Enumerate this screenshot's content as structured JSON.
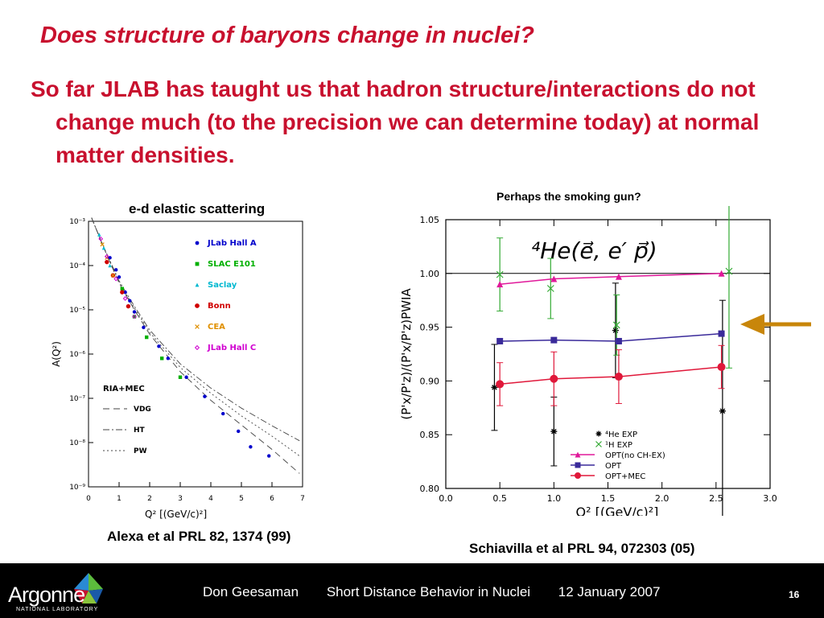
{
  "slide": {
    "title": "Does structure of baryons change in nuclei?",
    "bullet": "So far JLAB has taught us that hadron structure/interactions do not change much (to the precision we can determine today) at normal matter densities.",
    "left_caption": "e-d elastic scattering",
    "left_ref": "Alexa et al PRL 82, 1374 (99)",
    "right_caption": "Perhaps the smoking gun?",
    "right_ref": "Schiavilla et al PRL 94, 072303 (05)",
    "arrow_color": "#c8860a"
  },
  "footer": {
    "presenter": "Don Geesaman",
    "talk": "Short Distance Behavior in Nuclei",
    "date": "12 January 2007",
    "page": "16",
    "logo_text": "Argonne",
    "logo_sub": "NATIONAL LABORATORY"
  },
  "chart_data": [
    {
      "type": "scatter",
      "title": "",
      "xlabel": "Q² [(GeV/c)²]",
      "ylabel": "A(Q²)",
      "y_scale": "log",
      "xlim": [
        0,
        7
      ],
      "ylim": [
        1e-09,
        0.001
      ],
      "x_ticks": [
        "0",
        "1",
        "2",
        "3",
        "4",
        "5",
        "6",
        "7"
      ],
      "y_ticks": [
        "10⁻³",
        "10⁻⁴",
        "10⁻⁵",
        "10⁻⁶",
        "10⁻⁷",
        "10⁻⁸",
        "10⁻⁹"
      ],
      "legend": [
        {
          "label": "JLab Hall A",
          "color": "#0000cc",
          "marker": "dot"
        },
        {
          "label": "SLAC E101",
          "color": "#00b000",
          "marker": "square"
        },
        {
          "label": "Saclay",
          "color": "#00b8d0",
          "marker": "triangle"
        },
        {
          "label": "Bonn",
          "color": "#d00000",
          "marker": "circle"
        },
        {
          "label": "CEA",
          "color": "#e09000",
          "marker": "cross"
        },
        {
          "label": "JLab Hall C",
          "color": "#d000d0",
          "marker": "diamond"
        }
      ],
      "model_legend_title": "RIA+MEC",
      "model_legend": [
        {
          "label": "VDG",
          "dash": "8,5"
        },
        {
          "label": "HT",
          "dash": "8,3,2,3"
        },
        {
          "label": "PW",
          "dash": "2,3"
        }
      ],
      "series": [
        {
          "name": "JLab Hall A",
          "color": "#0000cc",
          "x": [
            0.7,
            0.9,
            1.0,
            1.2,
            1.35,
            1.5,
            1.8,
            2.3,
            2.6,
            3.2,
            3.8,
            4.4,
            4.9,
            5.3,
            5.9
          ],
          "y": [
            0.00015,
            8e-05,
            5.5e-05,
            2.5e-05,
            1.6e-05,
            9e-06,
            4e-06,
            1.5e-06,
            8e-07,
            3e-07,
            1.1e-07,
            4.5e-08,
            1.8e-08,
            8e-09,
            5e-09
          ]
        },
        {
          "name": "SLAC E101",
          "color": "#00b000",
          "x": [
            1.1,
            1.5,
            1.9,
            2.4,
            3.0
          ],
          "y": [
            3e-05,
            7e-06,
            2.4e-06,
            8e-07,
            3e-07
          ]
        },
        {
          "name": "Saclay",
          "color": "#00b8d0",
          "x": [
            0.35,
            0.5,
            0.7
          ],
          "y": [
            0.0005,
            0.00025,
            0.0001
          ]
        },
        {
          "name": "Bonn",
          "color": "#d00000",
          "x": [
            0.6,
            0.8,
            1.1,
            1.3
          ],
          "y": [
            0.00012,
            6e-05,
            2.5e-05,
            1.2e-05
          ]
        },
        {
          "name": "CEA",
          "color": "#e09000",
          "x": [
            0.45,
            0.6,
            0.8
          ],
          "y": [
            0.0003,
            0.00015,
            6e-05
          ]
        },
        {
          "name": "JLab Hall C",
          "color": "#d000d0",
          "x": [
            0.4,
            0.6,
            0.9,
            1.2,
            1.5
          ],
          "y": [
            0.0004,
            0.00016,
            5e-05,
            1.8e-05,
            7e-06
          ]
        }
      ],
      "curves": [
        {
          "name": "VDG",
          "dash": "8,5",
          "x": [
            0.1,
            0.5,
            1,
            1.5,
            2,
            3,
            4,
            5,
            6,
            6.9
          ],
          "y": [
            0.0012,
            0.00025,
            4e-05,
            1e-05,
            2.8e-06,
            4e-07,
            9e-08,
            2.5e-08,
            7e-09,
            2e-09
          ]
        },
        {
          "name": "HT",
          "dash": "8,3,2,3",
          "x": [
            0.1,
            0.5,
            1,
            1.5,
            2,
            3,
            4,
            5,
            6,
            6.9
          ],
          "y": [
            0.0012,
            0.00026,
            4.5e-05,
            1.2e-05,
            3.5e-06,
            6e-07,
            1.7e-07,
            6e-08,
            2.4e-08,
            1.1e-08
          ]
        },
        {
          "name": "PW",
          "dash": "2,3",
          "x": [
            0.1,
            0.5,
            1,
            1.5,
            2,
            3,
            4,
            5,
            6,
            6.9
          ],
          "y": [
            0.0012,
            0.00025,
            4.2e-05,
            1.1e-05,
            3.1e-06,
            5e-07,
            1.3e-07,
            4e-08,
            1.4e-08,
            5e-09
          ]
        }
      ]
    },
    {
      "type": "scatter",
      "title": "",
      "xlabel": "Q² [(GeV/c)²]",
      "ylabel": "(P'x/P'z)/(P'x/P'z)PWIA",
      "xlim": [
        0,
        3.0
      ],
      "ylim": [
        0.8,
        1.05
      ],
      "x_ticks": [
        "0.0",
        "0.5",
        "1.0",
        "1.5",
        "2.0",
        "2.5",
        "3.0"
      ],
      "y_ticks": [
        "0.80",
        "0.85",
        "0.90",
        "0.95",
        "1.00",
        "1.05"
      ],
      "annotation": "⁴He(e⃗, e′ p⃗)",
      "reference_line": 1.0,
      "legend": [
        {
          "label": "⁴He EXP",
          "color": "#000000",
          "marker": "star"
        },
        {
          "label": "¹H  EXP",
          "color": "#33aa33",
          "marker": "cross"
        },
        {
          "label": "OPT(no CH-EX)",
          "color": "#e0189a",
          "marker": "triangle"
        },
        {
          "label": "OPT",
          "color": "#3a2a9a",
          "marker": "square"
        },
        {
          "label": "OPT+MEC",
          "color": "#e0183a",
          "marker": "circle"
        }
      ],
      "series": [
        {
          "name": "⁴He EXP",
          "color": "#000000",
          "marker": "star",
          "x": [
            0.45,
            1.0,
            1.57,
            2.56
          ],
          "y": [
            0.894,
            0.853,
            0.947,
            0.872
          ],
          "err": [
            0.04,
            0.032,
            0.044,
            0.103
          ]
        },
        {
          "name": "¹H EXP",
          "color": "#33aa33",
          "marker": "cross",
          "x": [
            0.5,
            0.97,
            1.58,
            2.62
          ],
          "y": [
            0.999,
            0.986,
            0.952,
            1.002
          ],
          "err": [
            0.034,
            0.028,
            0.028,
            0.09
          ]
        },
        {
          "name": "OPT(no CH-EX)",
          "color": "#e0189a",
          "marker": "triangle",
          "x": [
            0.5,
            1.0,
            1.6,
            2.55
          ],
          "y": [
            0.99,
            0.995,
            0.997,
            1.0
          ]
        },
        {
          "name": "OPT",
          "color": "#3a2a9a",
          "marker": "square",
          "x": [
            0.5,
            1.0,
            1.6,
            2.55
          ],
          "y": [
            0.937,
            0.938,
            0.937,
            0.944
          ]
        },
        {
          "name": "OPT+MEC",
          "color": "#e0183a",
          "marker": "circle",
          "x": [
            0.5,
            1.0,
            1.6,
            2.55
          ],
          "y": [
            0.897,
            0.902,
            0.904,
            0.913
          ],
          "err": [
            0.02,
            0.025,
            0.025,
            0.02
          ]
        }
      ]
    }
  ]
}
